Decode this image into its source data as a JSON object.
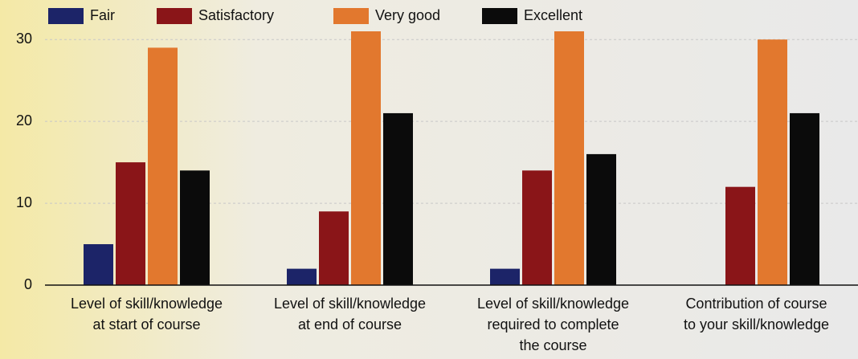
{
  "chart_data": {
    "type": "bar",
    "categories": [
      [
        "Level of skill/knowledge",
        "at start of course"
      ],
      [
        "Level of skill/knowledge",
        "at end of course"
      ],
      [
        "Level of skill/knowledge",
        "required to complete",
        "the course"
      ],
      [
        "Contribution of course",
        "to your skill/knowledge"
      ]
    ],
    "series": [
      {
        "name": "Fair",
        "color": "#1c2468",
        "values": [
          5,
          2,
          2,
          0
        ]
      },
      {
        "name": "Satisfactory",
        "color": "#8a1518",
        "values": [
          15,
          9,
          14,
          12
        ]
      },
      {
        "name": "Very good",
        "color": "#e2782e",
        "values": [
          29,
          31,
          31,
          30
        ]
      },
      {
        "name": "Excellent",
        "color": "#0b0b0b",
        "values": [
          14,
          21,
          16,
          21
        ]
      }
    ],
    "ylim": [
      0,
      31
    ],
    "yticks": [
      0,
      10,
      20,
      30
    ],
    "grid": true,
    "legend": "top"
  }
}
